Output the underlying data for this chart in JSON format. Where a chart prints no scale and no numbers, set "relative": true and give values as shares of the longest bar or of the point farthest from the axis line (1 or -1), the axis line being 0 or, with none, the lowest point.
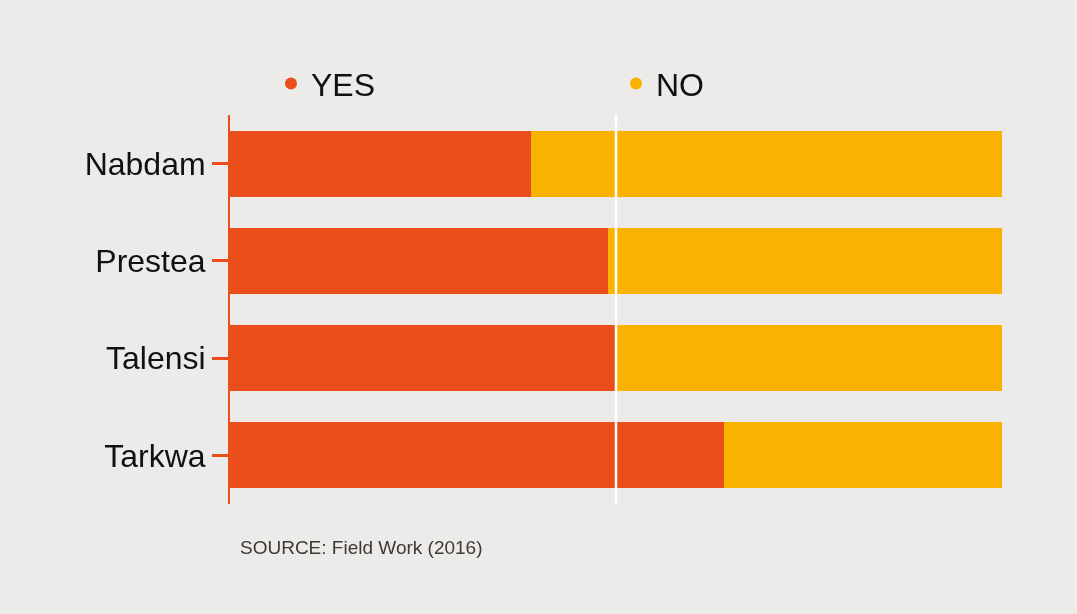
{
  "chart_data": {
    "type": "bar",
    "orientation": "horizontal",
    "stacked": true,
    "relative": true,
    "categories": [
      "Nabdam",
      "Prestea",
      "Talensi",
      "Tarkwa"
    ],
    "series": [
      {
        "name": "YES",
        "color": "#e94e1b",
        "values": [
          0.39,
          0.49,
          0.5,
          0.64
        ]
      },
      {
        "name": "NO",
        "color": "#f9b200",
        "values": [
          0.61,
          0.51,
          0.5,
          0.36
        ]
      }
    ],
    "ref_lines": [
      {
        "axis": "x",
        "value": 0.5,
        "color": "#ffffff",
        "line_style": "solid"
      }
    ],
    "legend": "top",
    "marker": "circle",
    "grid": false,
    "annotations": [
      "SOURCE: Field Work (2016)"
    ]
  }
}
